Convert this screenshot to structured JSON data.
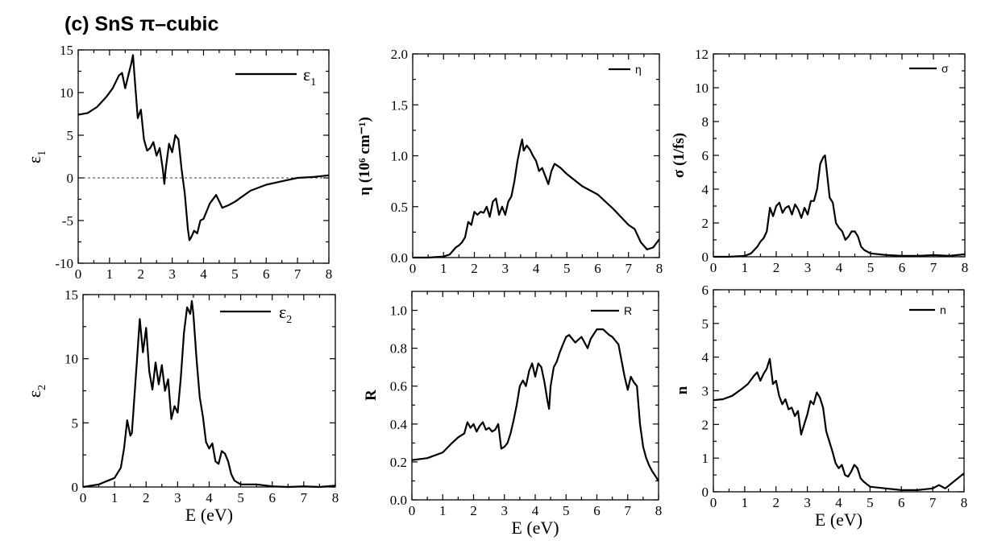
{
  "figure_title": "(c) SnS π–cubic",
  "chart_data": [
    {
      "id": "eps1",
      "type": "line",
      "xlabel": "",
      "ylabel_main": "ε",
      "ylabel_sub": "1",
      "legend_main": "ε",
      "legend_sub": "1",
      "xlim": [
        0,
        8
      ],
      "ylim": [
        -10,
        15
      ],
      "xticks": [
        "0",
        "1",
        "2",
        "3",
        "4",
        "5",
        "6",
        "7",
        "8"
      ],
      "yticks": [
        "-10",
        "-5",
        "0",
        "5",
        "10",
        "15"
      ],
      "reference_line_y": 0,
      "series": [
        {
          "x": [
            0,
            0.3,
            0.6,
            0.9,
            1.1,
            1.3,
            1.4,
            1.5,
            1.6,
            1.7,
            1.75,
            1.8,
            1.9,
            2.0,
            2.1,
            2.2,
            2.3,
            2.4,
            2.5,
            2.6,
            2.7,
            2.75,
            2.8,
            2.9,
            3.0,
            3.1,
            3.2,
            3.3,
            3.4,
            3.5,
            3.55,
            3.6,
            3.7,
            3.8,
            3.9,
            4.0,
            4.2,
            4.4,
            4.6,
            4.8,
            5.0,
            5.5,
            6.0,
            6.5,
            7.0,
            7.5,
            8.0
          ],
          "y": [
            7.4,
            7.6,
            8.3,
            9.5,
            10.5,
            12.0,
            12.3,
            10.5,
            12.0,
            13.5,
            14.4,
            11.8,
            7.0,
            8.0,
            4.5,
            3.2,
            3.5,
            4.2,
            2.6,
            3.5,
            1.0,
            -0.7,
            1.2,
            4.0,
            3.0,
            5.0,
            4.5,
            1.0,
            -1.8,
            -6.0,
            -7.3,
            -7.0,
            -6.2,
            -6.5,
            -5.0,
            -4.8,
            -3.0,
            -2.0,
            -3.5,
            -3.2,
            -2.8,
            -1.5,
            -0.8,
            -0.4,
            0.0,
            0.1,
            0.3
          ]
        }
      ]
    },
    {
      "id": "eta",
      "type": "line",
      "xlabel": "",
      "ylabel": "η (10⁶ cm⁻¹)",
      "legend": "η",
      "xlim": [
        0,
        8
      ],
      "ylim": [
        0,
        2.0
      ],
      "xticks": [
        "0",
        "1",
        "2",
        "3",
        "4",
        "5",
        "6",
        "7",
        "8"
      ],
      "yticks": [
        "0.0",
        "0.5",
        "1.0",
        "1.5",
        "2.0"
      ],
      "series": [
        {
          "x": [
            0,
            0.5,
            1.0,
            1.2,
            1.4,
            1.5,
            1.6,
            1.7,
            1.8,
            1.9,
            2.0,
            2.1,
            2.2,
            2.3,
            2.4,
            2.5,
            2.6,
            2.7,
            2.8,
            2.9,
            3.0,
            3.1,
            3.2,
            3.3,
            3.4,
            3.5,
            3.55,
            3.6,
            3.7,
            3.8,
            3.9,
            4.0,
            4.1,
            4.2,
            4.3,
            4.4,
            4.5,
            4.6,
            4.7,
            4.8,
            5.0,
            5.5,
            6.0,
            6.5,
            7.0,
            7.2,
            7.4,
            7.6,
            7.8,
            8.0
          ],
          "y": [
            0,
            0,
            0.01,
            0.03,
            0.1,
            0.12,
            0.15,
            0.2,
            0.35,
            0.32,
            0.45,
            0.42,
            0.45,
            0.44,
            0.5,
            0.4,
            0.55,
            0.58,
            0.42,
            0.5,
            0.42,
            0.55,
            0.6,
            0.75,
            0.95,
            1.1,
            1.16,
            1.05,
            1.1,
            1.06,
            1.0,
            0.95,
            0.85,
            0.88,
            0.8,
            0.72,
            0.85,
            0.92,
            0.9,
            0.88,
            0.82,
            0.7,
            0.62,
            0.48,
            0.32,
            0.28,
            0.15,
            0.08,
            0.1,
            0.18
          ]
        }
      ]
    },
    {
      "id": "sigma",
      "type": "line",
      "xlabel": "",
      "ylabel": "σ (1/fs)",
      "legend": "σ",
      "xlim": [
        0,
        8
      ],
      "ylim": [
        0,
        12
      ],
      "xticks": [
        "0",
        "1",
        "2",
        "3",
        "4",
        "5",
        "6",
        "7",
        "8"
      ],
      "yticks": [
        "0",
        "2",
        "4",
        "6",
        "8",
        "10",
        "12"
      ],
      "series": [
        {
          "x": [
            0,
            0.5,
            1.0,
            1.2,
            1.4,
            1.5,
            1.6,
            1.7,
            1.8,
            1.9,
            2.0,
            2.1,
            2.2,
            2.3,
            2.4,
            2.5,
            2.6,
            2.7,
            2.8,
            2.9,
            3.0,
            3.1,
            3.2,
            3.3,
            3.4,
            3.5,
            3.55,
            3.6,
            3.7,
            3.8,
            3.9,
            4.0,
            4.1,
            4.2,
            4.3,
            4.4,
            4.5,
            4.6,
            4.7,
            4.8,
            5.0,
            5.5,
            6.0,
            6.5,
            7.0,
            7.5,
            8.0
          ],
          "y": [
            0,
            0,
            0.05,
            0.2,
            0.6,
            0.9,
            1.1,
            1.5,
            2.9,
            2.4,
            3.0,
            3.2,
            2.6,
            2.9,
            3.0,
            2.5,
            3.1,
            2.8,
            2.3,
            2.9,
            2.5,
            3.3,
            3.3,
            4.0,
            5.5,
            5.9,
            6.0,
            5.2,
            3.5,
            3.2,
            2.0,
            1.7,
            1.5,
            1.0,
            1.2,
            1.5,
            1.5,
            1.2,
            0.6,
            0.4,
            0.2,
            0.1,
            0.05,
            0.05,
            0.1,
            0.05,
            0.15
          ]
        }
      ]
    },
    {
      "id": "eps2",
      "type": "line",
      "xlabel": "E (eV)",
      "ylabel_main": "ε",
      "ylabel_sub": "2",
      "legend_main": "ε",
      "legend_sub": "2",
      "xlim": [
        0,
        8
      ],
      "ylim": [
        0,
        15
      ],
      "xticks": [
        "0",
        "1",
        "2",
        "3",
        "4",
        "5",
        "6",
        "7",
        "8"
      ],
      "yticks": [
        "0",
        "5",
        "10",
        "15"
      ],
      "series": [
        {
          "x": [
            0,
            0.5,
            1.0,
            1.2,
            1.3,
            1.4,
            1.5,
            1.55,
            1.6,
            1.7,
            1.8,
            1.9,
            2.0,
            2.1,
            2.2,
            2.3,
            2.4,
            2.5,
            2.6,
            2.7,
            2.8,
            2.9,
            3.0,
            3.1,
            3.2,
            3.3,
            3.4,
            3.45,
            3.5,
            3.6,
            3.7,
            3.8,
            3.9,
            4.0,
            4.1,
            4.2,
            4.3,
            4.4,
            4.5,
            4.6,
            4.7,
            4.8,
            5.0,
            5.5,
            6.0,
            6.5,
            7.0,
            7.5,
            8.0
          ],
          "y": [
            0,
            0.2,
            0.7,
            1.5,
            3.0,
            5.2,
            4.0,
            4.2,
            6.0,
            9.5,
            13.1,
            10.5,
            12.4,
            9.0,
            7.6,
            9.7,
            8.0,
            9.5,
            7.5,
            8.4,
            5.3,
            6.3,
            5.8,
            8.5,
            12.0,
            14.0,
            13.5,
            14.5,
            13.5,
            10.0,
            7.0,
            5.5,
            3.5,
            3.0,
            3.4,
            2.0,
            1.8,
            2.8,
            2.6,
            2.0,
            1.0,
            0.5,
            0.2,
            0.2,
            0.05,
            0.0,
            0.05,
            0.0,
            0.1
          ]
        }
      ]
    },
    {
      "id": "R",
      "type": "line",
      "xlabel": "E (eV)",
      "ylabel": "R",
      "legend": "R",
      "xlim": [
        0,
        8
      ],
      "ylim": [
        0.0,
        1.1
      ],
      "xticks": [
        "0",
        "1",
        "2",
        "3",
        "4",
        "5",
        "6",
        "7",
        "8"
      ],
      "yticks": [
        "0.0",
        "0.2",
        "0.4",
        "0.6",
        "0.8",
        "1.0"
      ],
      "series": [
        {
          "x": [
            0,
            0.5,
            1.0,
            1.3,
            1.5,
            1.7,
            1.8,
            1.9,
            2.0,
            2.1,
            2.2,
            2.3,
            2.4,
            2.5,
            2.6,
            2.7,
            2.8,
            2.9,
            3.0,
            3.1,
            3.2,
            3.3,
            3.4,
            3.5,
            3.6,
            3.7,
            3.8,
            3.9,
            4.0,
            4.1,
            4.2,
            4.3,
            4.4,
            4.45,
            4.5,
            4.6,
            4.7,
            4.8,
            4.9,
            5.0,
            5.1,
            5.2,
            5.3,
            5.5,
            5.7,
            5.8,
            6.0,
            6.2,
            6.4,
            6.5,
            6.7,
            6.9,
            7.0,
            7.1,
            7.2,
            7.3,
            7.4,
            7.5,
            7.6,
            7.7,
            7.8,
            8.0
          ],
          "y": [
            0.21,
            0.22,
            0.25,
            0.3,
            0.33,
            0.35,
            0.41,
            0.38,
            0.4,
            0.36,
            0.39,
            0.41,
            0.37,
            0.38,
            0.36,
            0.37,
            0.4,
            0.27,
            0.28,
            0.3,
            0.35,
            0.42,
            0.5,
            0.6,
            0.63,
            0.6,
            0.68,
            0.72,
            0.65,
            0.72,
            0.7,
            0.62,
            0.52,
            0.48,
            0.6,
            0.7,
            0.73,
            0.78,
            0.82,
            0.86,
            0.87,
            0.85,
            0.83,
            0.86,
            0.8,
            0.85,
            0.9,
            0.9,
            0.87,
            0.86,
            0.82,
            0.65,
            0.58,
            0.65,
            0.62,
            0.6,
            0.4,
            0.28,
            0.22,
            0.18,
            0.15,
            0.1
          ]
        }
      ]
    },
    {
      "id": "n",
      "type": "line",
      "xlabel": "E (eV)",
      "ylabel": "n",
      "legend": "n",
      "xlim": [
        0,
        8
      ],
      "ylim": [
        0,
        6
      ],
      "xticks": [
        "0",
        "1",
        "2",
        "3",
        "4",
        "5",
        "6",
        "7",
        "8"
      ],
      "yticks": [
        "0",
        "1",
        "2",
        "3",
        "4",
        "5",
        "6"
      ],
      "series": [
        {
          "x": [
            0,
            0.3,
            0.6,
            0.9,
            1.1,
            1.3,
            1.4,
            1.5,
            1.6,
            1.7,
            1.8,
            1.9,
            2.0,
            2.1,
            2.2,
            2.3,
            2.4,
            2.5,
            2.6,
            2.7,
            2.8,
            2.9,
            3.0,
            3.1,
            3.2,
            3.3,
            3.4,
            3.5,
            3.6,
            3.7,
            3.8,
            3.9,
            4.0,
            4.1,
            4.2,
            4.3,
            4.4,
            4.5,
            4.6,
            4.7,
            4.8,
            5.0,
            5.5,
            6.0,
            6.5,
            7.0,
            7.2,
            7.4,
            7.6,
            7.8,
            8.0
          ],
          "y": [
            2.72,
            2.75,
            2.85,
            3.05,
            3.2,
            3.45,
            3.55,
            3.3,
            3.5,
            3.65,
            3.95,
            3.2,
            3.3,
            2.85,
            2.6,
            2.75,
            2.45,
            2.5,
            2.25,
            2.4,
            1.7,
            2.0,
            2.3,
            2.7,
            2.6,
            2.95,
            2.8,
            2.5,
            1.8,
            1.5,
            1.2,
            0.85,
            0.7,
            0.8,
            0.5,
            0.45,
            0.6,
            0.8,
            0.7,
            0.4,
            0.3,
            0.15,
            0.1,
            0.05,
            0.05,
            0.1,
            0.2,
            0.1,
            0.25,
            0.4,
            0.55
          ]
        }
      ]
    }
  ]
}
